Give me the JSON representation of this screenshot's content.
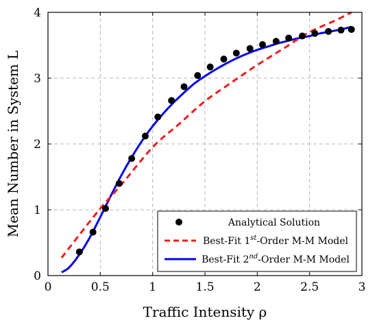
{
  "chart_data": {
    "type": "line",
    "xlabel": "Traffic Intensity ρ",
    "ylabel": "Mean Number in System L",
    "xlim": [
      0,
      3
    ],
    "ylim": [
      0,
      4
    ],
    "xticks": [
      "0",
      "0.5",
      "1",
      "1.5",
      "2",
      "2.5",
      "3"
    ],
    "yticks": [
      "0",
      "1",
      "2",
      "3",
      "4"
    ],
    "grid": true,
    "legend_position": "bottom-right",
    "legend": [
      {
        "label": "Analytical Solution",
        "marker": "circle"
      },
      {
        "label_parts": [
          "Best-Fit 1",
          "st",
          "-Order M-M Model"
        ]
      },
      {
        "label_parts": [
          "Best-Fit 2",
          "nd",
          "-Order M-M Model"
        ]
      }
    ],
    "series": [
      {
        "name": "Analytical Solution",
        "style": "markers",
        "color": "#000000",
        "x": [
          0.3,
          0.43,
          0.55,
          0.68,
          0.8,
          0.93,
          1.05,
          1.18,
          1.3,
          1.43,
          1.55,
          1.68,
          1.8,
          1.93,
          2.05,
          2.18,
          2.3,
          2.43,
          2.55,
          2.68,
          2.8,
          2.9
        ],
        "y": [
          0.36,
          0.66,
          1.02,
          1.4,
          1.78,
          2.12,
          2.41,
          2.66,
          2.87,
          3.04,
          3.17,
          3.29,
          3.38,
          3.45,
          3.51,
          3.56,
          3.61,
          3.64,
          3.68,
          3.71,
          3.73,
          3.74
        ]
      },
      {
        "name": "Best-Fit 1st-Order M-M Model",
        "style": "dashed",
        "color": "#ee1c1c",
        "x": [
          0.13,
          0.3,
          0.5,
          0.7,
          1.0,
          1.25,
          1.5,
          1.75,
          2.0,
          2.25,
          2.5,
          2.75,
          2.9
        ],
        "y": [
          0.27,
          0.62,
          1.02,
          1.38,
          1.95,
          2.3,
          2.65,
          2.93,
          3.2,
          3.45,
          3.7,
          3.88,
          4.0
        ]
      },
      {
        "name": "Best-Fit 2nd-Order M-M Model",
        "style": "solid",
        "color": "#0000ee",
        "x": [
          0.13,
          0.2,
          0.3,
          0.4,
          0.5,
          0.6,
          0.7,
          0.8,
          0.9,
          1.0,
          1.1,
          1.2,
          1.3,
          1.4,
          1.5,
          1.6,
          1.7,
          1.8,
          1.9,
          2.0,
          2.1,
          2.2,
          2.3,
          2.4,
          2.5,
          2.6,
          2.7,
          2.8,
          2.9
        ],
        "y": [
          0.05,
          0.12,
          0.32,
          0.58,
          0.89,
          1.21,
          1.52,
          1.8,
          2.05,
          2.27,
          2.46,
          2.63,
          2.78,
          2.92,
          3.03,
          3.13,
          3.22,
          3.3,
          3.37,
          3.43,
          3.48,
          3.53,
          3.57,
          3.61,
          3.64,
          3.68,
          3.71,
          3.74,
          3.78
        ]
      }
    ]
  }
}
